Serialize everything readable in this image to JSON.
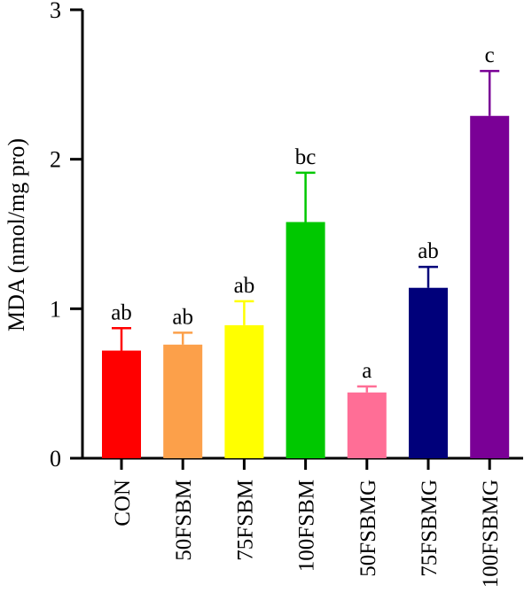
{
  "chart_data": {
    "type": "bar",
    "ylabel": "MDA (nmol/mg pro)",
    "xlabel": "",
    "ylim": [
      0,
      3
    ],
    "yticks": [
      "0",
      "1",
      "2",
      "3"
    ],
    "grid": false,
    "legend": "none",
    "categories": [
      "CON",
      "50FSBM",
      "75FSBM",
      "100FSBM",
      "50FSBMG",
      "75FSBMG",
      "100FSBMG"
    ],
    "values": [
      0.72,
      0.76,
      0.89,
      1.58,
      0.44,
      1.14,
      2.29
    ],
    "errors": [
      0.15,
      0.08,
      0.16,
      0.33,
      0.04,
      0.14,
      0.3
    ],
    "significance": [
      "ab",
      "ab",
      "ab",
      "bc",
      "a",
      "ab",
      "c"
    ],
    "colors": [
      "#ff0000",
      "#fca04a",
      "#ffff00",
      "#00c800",
      "#ff6e96",
      "#00007a",
      "#7a0096"
    ]
  }
}
